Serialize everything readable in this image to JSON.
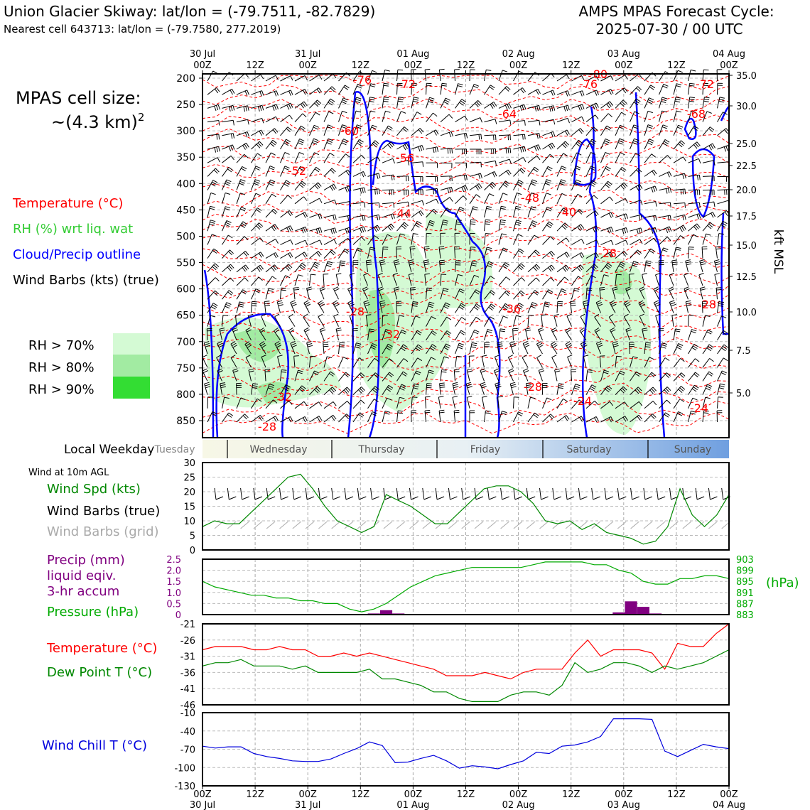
{
  "header": {
    "title": "Union Glacier Skiway: lat/lon = (-79.7511, -82.7829)",
    "subtitle": "Nearest cell 643713: lat/lon = (-79.7580, 277.2019)",
    "cycle_line1": "AMPS MPAS Forecast Cycle:",
    "cycle_line2": "2025-07-30 / 00 UTC"
  },
  "legend": {
    "cell_size_line1": "MPAS cell size:",
    "cell_size_line2": "~(4.3 km)",
    "cell_size_sup": "2",
    "temperature": "Temperature (°C)",
    "rh": "RH (%) wrt liq. wat",
    "cloud": "Cloud/Precip outline",
    "barbs": "Wind Barbs (kts) (true)",
    "rh70": "RH > 70%",
    "rh80": "RH > 80%",
    "rh90": "RH > 90%"
  },
  "colors": {
    "temp": "#ff0000",
    "rh_text": "#33cc33",
    "cloud": "#0000ff",
    "rh70": "#d4fad4",
    "rh80": "#a2eba2",
    "rh90": "#33dd33",
    "precip": "#800080",
    "pressure": "#00aa00",
    "wind_speed": "#008800",
    "dewpoint": "#008800",
    "windchill": "#0000dd",
    "grid_barb": "#aaaaaa"
  },
  "time_axis": {
    "top_labels": [
      {
        "l1": "30 Jul",
        "l2": "00Z"
      },
      {
        "l1": "",
        "l2": "12Z"
      },
      {
        "l1": "31 Jul",
        "l2": "00Z"
      },
      {
        "l1": "",
        "l2": "12Z"
      },
      {
        "l1": "01 Aug",
        "l2": "00Z"
      },
      {
        "l1": "",
        "l2": "12Z"
      },
      {
        "l1": "02 Aug",
        "l2": "00Z"
      },
      {
        "l1": "",
        "l2": "12Z"
      },
      {
        "l1": "03 Aug",
        "l2": "00Z"
      },
      {
        "l1": "",
        "l2": "12Z"
      },
      {
        "l1": "04 Aug",
        "l2": "00Z"
      }
    ],
    "bottom_labels": [
      {
        "l1": "00Z",
        "l2": "30 Jul"
      },
      {
        "l1": "12Z",
        "l2": ""
      },
      {
        "l1": "00Z",
        "l2": "31 Jul"
      },
      {
        "l1": "12Z",
        "l2": ""
      },
      {
        "l1": "00Z",
        "l2": "01 Aug"
      },
      {
        "l1": "12Z",
        "l2": ""
      },
      {
        "l1": "00Z",
        "l2": "02 Aug"
      },
      {
        "l1": "12Z",
        "l2": ""
      },
      {
        "l1": "00Z",
        "l2": "03 Aug"
      },
      {
        "l1": "12Z",
        "l2": ""
      },
      {
        "l1": "00Z",
        "l2": "04 Aug"
      }
    ]
  },
  "weekday": {
    "label": "Local Weekday",
    "days": [
      "Tuesday",
      "Wednesday",
      "Thursday",
      "Friday",
      "Saturday",
      "Sunday"
    ]
  },
  "panel_labels": {
    "wind10m": "Wind at 10m AGL",
    "wind_spd": "Wind Spd (kts)",
    "wind_barbs_true": "Wind Barbs (true)",
    "wind_barbs_grid": "Wind Barbs (grid)",
    "precip1": "Precip (mm)",
    "precip2": "liquid eqiv.",
    "precip3": "3-hr accum",
    "pressure": "Pressure (hPa)",
    "hpa": "(hPa)",
    "temperature": "Temperature (°C)",
    "dewpoint": "Dew Point T (°C)",
    "windchill": "Wind Chill T (°C)",
    "kft": "kft MSL"
  },
  "chart_data": [
    {
      "type": "heatmap",
      "name": "cross-section",
      "y_ticks_hpa": [
        200,
        250,
        300,
        350,
        400,
        450,
        500,
        550,
        600,
        650,
        700,
        750,
        800,
        850
      ],
      "y_right_kft": [
        "35.0",
        "30.0",
        "25.0",
        "22.5",
        "20.0",
        "17.5",
        "15.0",
        "12.5",
        "10.0",
        "7.5",
        "5.0"
      ],
      "temp_labels": [
        "-76",
        "-72",
        "-80",
        "-76",
        "-72",
        "-64",
        "-68",
        "-60",
        "-56",
        "-52",
        "-48",
        "-44",
        "-40",
        "-28",
        "-36",
        "-28",
        "-28",
        "-32",
        "-32",
        "-28",
        "-24",
        "-28",
        "-24"
      ]
    },
    {
      "type": "line",
      "name": "wind speed",
      "ylim": [
        0,
        30
      ],
      "y_ticks": [
        "0",
        "5",
        "10",
        "15",
        "20",
        "25",
        "30"
      ],
      "values": [
        8,
        10,
        9,
        9,
        13,
        17,
        21,
        25,
        26,
        21,
        15,
        10,
        8,
        6,
        8,
        19,
        17,
        15,
        12,
        9,
        9,
        13,
        17,
        21,
        22,
        22,
        20,
        16,
        10,
        9,
        10,
        7,
        9,
        6,
        5,
        4,
        2,
        3,
        8,
        21,
        12,
        8,
        12,
        19
      ]
    },
    {
      "type": "line",
      "name": "pressure",
      "ylim": [
        883,
        903
      ],
      "y_ticks_right": [
        "903",
        "899",
        "895",
        "891",
        "887",
        "883"
      ],
      "values": [
        895,
        893,
        892,
        891,
        890,
        890,
        889,
        889,
        888,
        888,
        887,
        887,
        885,
        884,
        885,
        887,
        890,
        893,
        895,
        897,
        898,
        899,
        900,
        900,
        900,
        900,
        900,
        901,
        902,
        902,
        902,
        902,
        901,
        901,
        899,
        898,
        895,
        894,
        894,
        896,
        896,
        897,
        897,
        896
      ],
      "precip_ylim": [
        0,
        2.5
      ],
      "precip_ticks": [
        "0",
        "0.5",
        "1.0",
        "1.5",
        "2.0",
        "2.5"
      ],
      "precip_values": [
        0,
        0,
        0,
        0,
        0,
        0,
        0,
        0,
        0,
        0,
        0,
        0,
        0,
        0,
        0.05,
        0.2,
        0.05,
        0,
        0,
        0,
        0,
        0,
        0,
        0,
        0,
        0,
        0,
        0,
        0,
        0,
        0,
        0,
        0,
        0,
        0.1,
        0.6,
        0.35,
        0.05,
        0,
        0,
        0,
        0,
        0,
        0
      ]
    },
    {
      "type": "line",
      "name": "temperature",
      "ylim": [
        -46,
        -21
      ],
      "y_ticks": [
        "-21",
        "-26",
        "-31",
        "-36",
        "-41",
        "-46"
      ],
      "series": [
        {
          "key": "temp",
          "values": [
            -29,
            -28,
            -28,
            -28,
            -29,
            -29,
            -28,
            -29,
            -29,
            -31,
            -31,
            -30,
            -31,
            -30,
            -31,
            -32,
            -33,
            -34,
            -35,
            -37,
            -37,
            -37,
            -36,
            -37,
            -38,
            -36,
            -35,
            -35,
            -35,
            -30,
            -26,
            -31,
            -29,
            -29,
            -29,
            -30,
            -35,
            -27,
            -28,
            -28,
            -24,
            -21
          ]
        },
        {
          "key": "dewpoint",
          "values": [
            -34,
            -33,
            -33,
            -32,
            -34,
            -34,
            -34,
            -35,
            -34,
            -36,
            -36,
            -36,
            -36,
            -35,
            -38,
            -38,
            -39,
            -40,
            -42,
            -42,
            -44,
            -45,
            -45,
            -45,
            -43,
            -42,
            -42,
            -43,
            -40,
            -33,
            -36,
            -35,
            -33,
            -33,
            -34,
            -36,
            -34,
            -35,
            -34,
            -33,
            -31,
            -29
          ]
        }
      ]
    },
    {
      "type": "line",
      "name": "wind chill",
      "ylim": [
        -130,
        -10
      ],
      "y_ticks": [
        "-10",
        "-40",
        "-70",
        "-100",
        "-130"
      ],
      "values": [
        -65,
        -68,
        -66,
        -66,
        -77,
        -82,
        -85,
        -89,
        -90,
        -90,
        -86,
        -77,
        -69,
        -58,
        -64,
        -92,
        -91,
        -85,
        -80,
        -89,
        -101,
        -97,
        -99,
        -102,
        -95,
        -89,
        -75,
        -77,
        -65,
        -63,
        -58,
        -49,
        -20,
        -20,
        -20,
        -21,
        -73,
        -82,
        -72,
        -62,
        -66,
        -69
      ]
    }
  ]
}
